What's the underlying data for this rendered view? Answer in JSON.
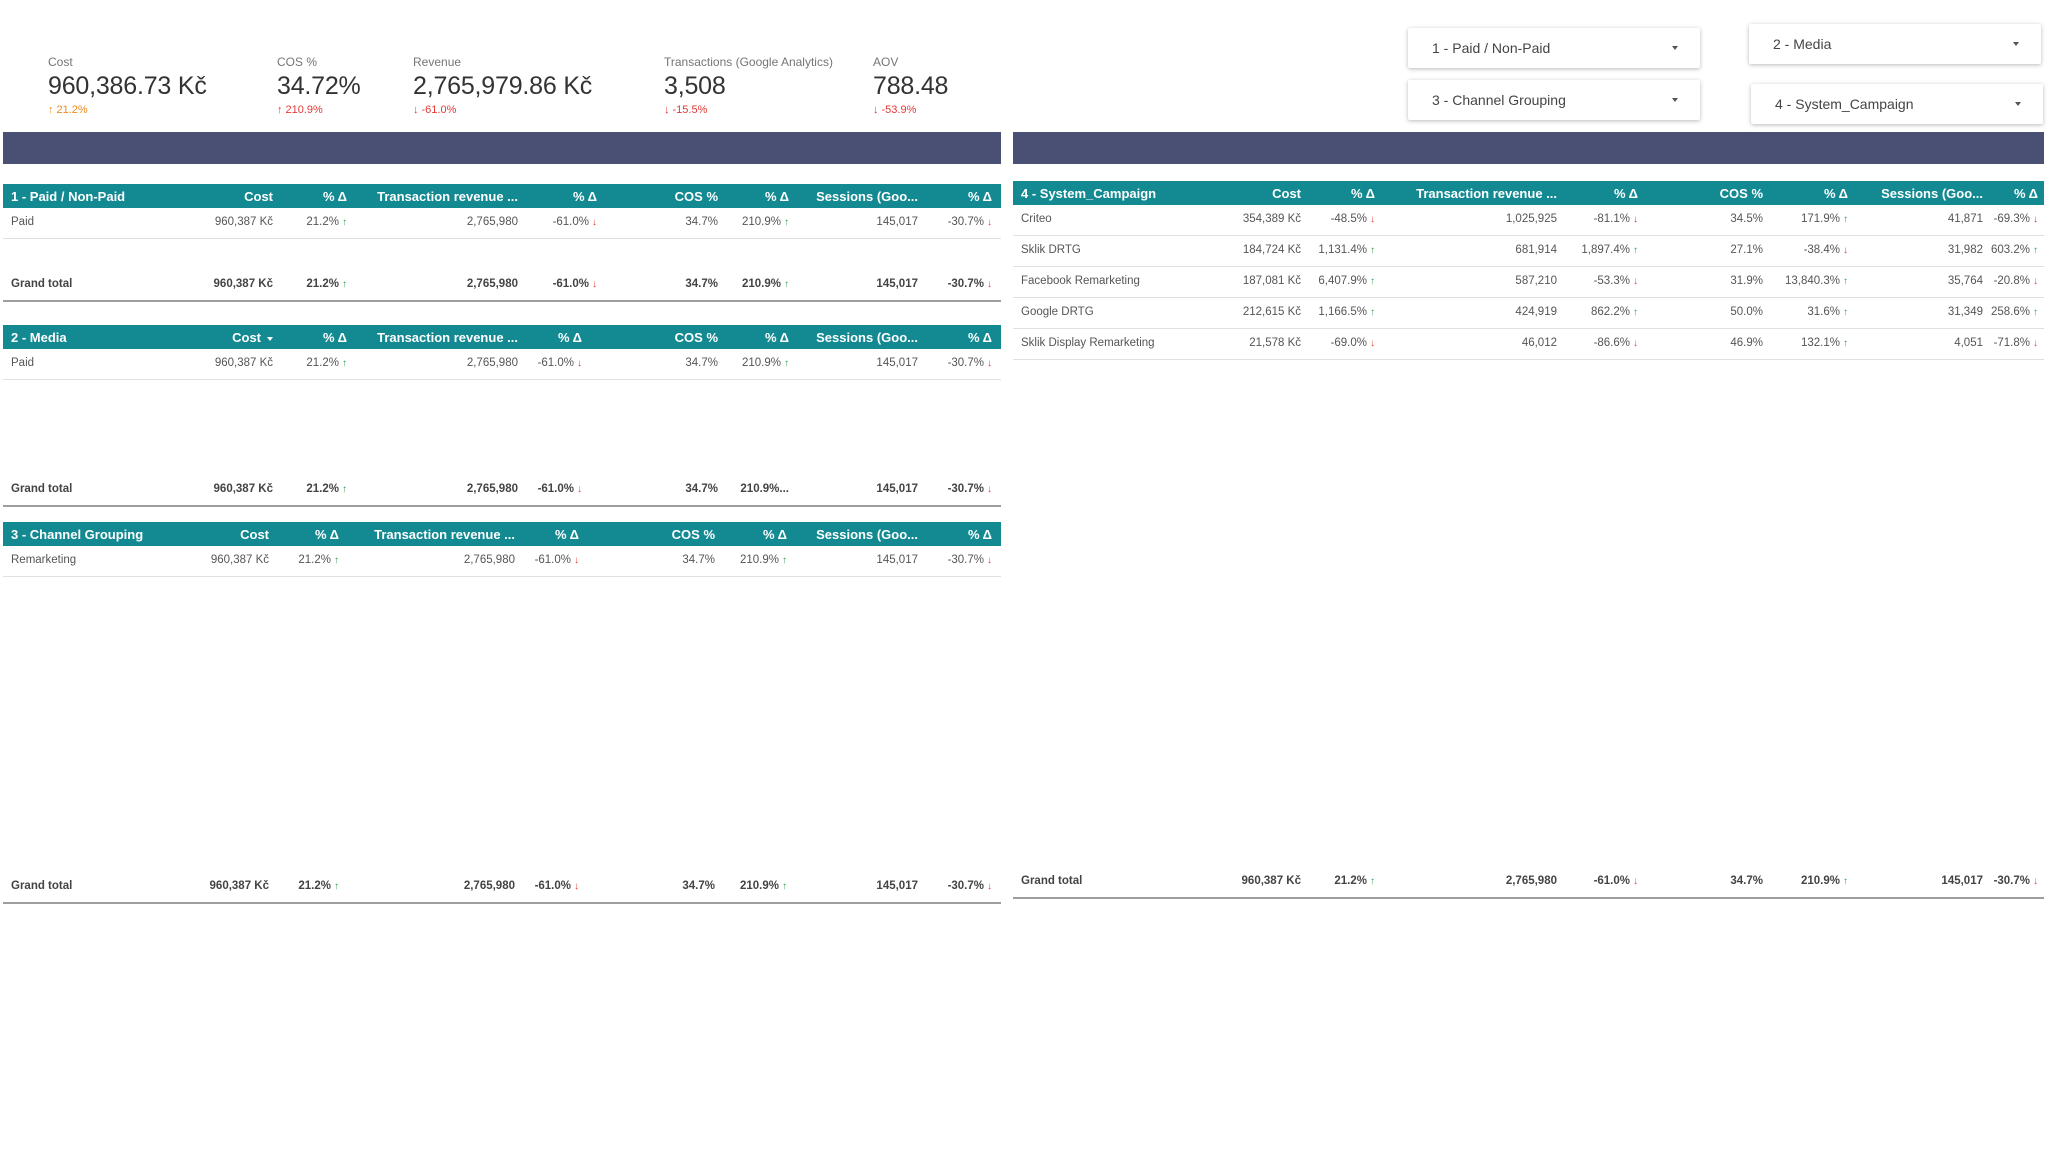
{
  "kpis": [
    {
      "label": "Cost",
      "value": "960,386.73 Kč",
      "delta": "21.2%",
      "dir": "up-orange"
    },
    {
      "label": "COS %",
      "value": "34.72%",
      "delta": "210.9%",
      "dir": "up-red"
    },
    {
      "label": "Revenue",
      "value": "2,765,979.86 Kč",
      "delta": "-61.0%",
      "dir": "down"
    },
    {
      "label": "Transactions (Google Analytics)",
      "value": "3,508",
      "delta": "-15.5%",
      "dir": "down"
    },
    {
      "label": "AOV",
      "value": "788.48",
      "delta": "-53.9%",
      "dir": "down"
    }
  ],
  "filters": [
    {
      "label": "1 - Paid / Non-Paid"
    },
    {
      "label": "2 - Media"
    },
    {
      "label": "3 - Channel Grouping"
    },
    {
      "label": "4 - System_Campaign"
    }
  ],
  "tables": [
    {
      "title": "1 - Paid / Non-Paid",
      "headers": [
        "Cost",
        "% Δ",
        "Transaction revenue ...",
        "% Δ",
        "COS %",
        "% Δ",
        "Sessions (Goo...",
        "% Δ"
      ],
      "rows": [
        {
          "dim": "Paid",
          "vals": [
            "960,387 Kč",
            "21.2%",
            "2,765,980",
            "-61.0%",
            "34.7%",
            "210.9%",
            "145,017",
            "-30.7%"
          ],
          "dirs": [
            "up",
            "down",
            "up",
            "down"
          ]
        }
      ],
      "grand_total": {
        "label": "Grand total",
        "vals": [
          "960,387 Kč",
          "21.2%",
          "2,765,980",
          "-61.0%",
          "34.7%",
          "210.9%",
          "145,017",
          "-30.7%"
        ],
        "dirs": [
          "up",
          "down",
          "up",
          "down"
        ]
      }
    },
    {
      "title": "2 - Media",
      "headers": [
        "Cost",
        "% Δ",
        "Transaction revenue ...",
        "% Δ",
        "COS %",
        "% Δ",
        "Sessions (Goo...",
        "% Δ"
      ],
      "rows": [
        {
          "dim": "Paid",
          "vals": [
            "960,387 Kč",
            "21.2%",
            "2,765,980",
            "-61.0%",
            "34.7%",
            "210.9%",
            "145,017",
            "-30.7%"
          ],
          "dirs": [
            "up",
            "down",
            "up",
            "down"
          ]
        }
      ],
      "grand_total": {
        "label": "Grand total",
        "vals": [
          "960,387 Kč",
          "21.2%",
          "2,765,980",
          "-61.0%",
          "34.7%",
          "210.9%...",
          "145,017",
          "-30.7%"
        ],
        "dirs": [
          "up",
          "down",
          "",
          "down"
        ]
      }
    },
    {
      "title": "3 - Channel Grouping",
      "headers": [
        "Cost",
        "% Δ",
        "Transaction revenue ...",
        "% Δ",
        "COS %",
        "% Δ",
        "Sessions (Goo...",
        "% Δ"
      ],
      "rows": [
        {
          "dim": "Remarketing",
          "vals": [
            "960,387 Kč",
            "21.2%",
            "2,765,980",
            "-61.0%",
            "34.7%",
            "210.9%",
            "145,017",
            "-30.7%"
          ],
          "dirs": [
            "up",
            "down",
            "up",
            "down"
          ]
        }
      ],
      "grand_total": {
        "label": "Grand total",
        "vals": [
          "960,387 Kč",
          "21.2%",
          "2,765,980",
          "-61.0%",
          "34.7%",
          "210.9%",
          "145,017",
          "-30.7%"
        ],
        "dirs": [
          "up",
          "down",
          "up",
          "down"
        ]
      }
    },
    {
      "title": "4 - System_Campaign",
      "headers": [
        "Cost",
        "% Δ",
        "Transaction revenue ...",
        "% Δ",
        "COS %",
        "% Δ",
        "Sessions (Goo...",
        "% Δ"
      ],
      "rows": [
        {
          "dim": "Criteo",
          "vals": [
            "354,389 Kč",
            "-48.5%",
            "1,025,925",
            "-81.1%",
            "34.5%",
            "171.9%",
            "41,871",
            "-69.3%"
          ],
          "dirs": [
            "down",
            "down",
            "up",
            "down"
          ]
        },
        {
          "dim": "Sklik DRTG",
          "vals": [
            "184,724 Kč",
            "1,131.4%",
            "681,914",
            "1,897.4%",
            "27.1%",
            "-38.4%",
            "31,982",
            "603.2%"
          ],
          "dirs": [
            "up",
            "up",
            "down",
            "up"
          ]
        },
        {
          "dim": "Facebook Remarketing",
          "vals": [
            "187,081 Kč",
            "6,407.9%",
            "587,210",
            "-53.3%",
            "31.9%",
            "13,840.3%",
            "35,764",
            "-20.8%"
          ],
          "dirs": [
            "up",
            "down",
            "up",
            "down"
          ]
        },
        {
          "dim": "Google DRTG",
          "vals": [
            "212,615 Kč",
            "1,166.5%",
            "424,919",
            "862.2%",
            "50.0%",
            "31.6%",
            "31,349",
            "258.6%"
          ],
          "dirs": [
            "up",
            "up",
            "up",
            "up"
          ]
        },
        {
          "dim": "Sklik Display Remarketing",
          "vals": [
            "21,578 Kč",
            "-69.0%",
            "46,012",
            "-86.6%",
            "46.9%",
            "132.1%",
            "4,051",
            "-71.8%"
          ],
          "dirs": [
            "down",
            "down",
            "up",
            "down"
          ]
        }
      ],
      "grand_total": {
        "label": "Grand total",
        "vals": [
          "960,387 Kč",
          "21.2%",
          "2,765,980",
          "-61.0%",
          "34.7%",
          "210.9%",
          "145,017",
          "-30.7%"
        ],
        "dirs": [
          "up",
          "down",
          "up",
          "down"
        ]
      }
    }
  ]
}
